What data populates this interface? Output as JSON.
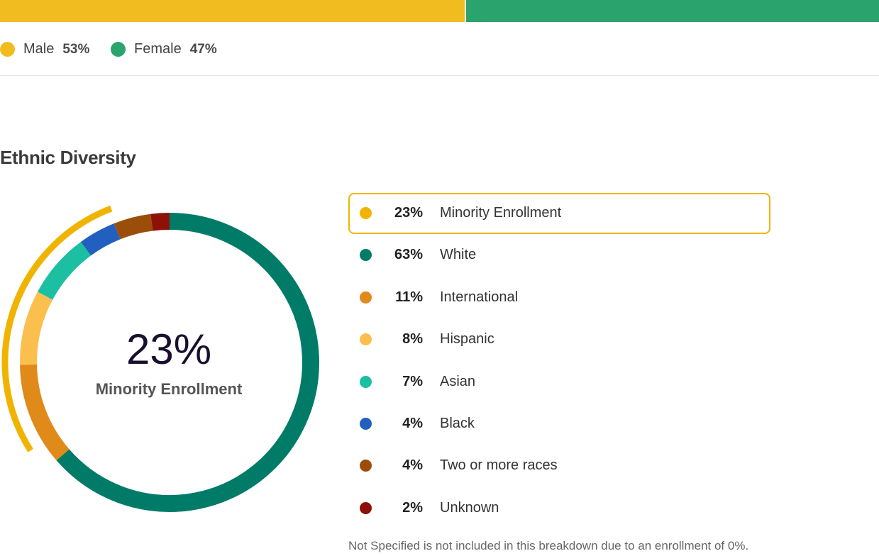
{
  "gender": {
    "items": [
      {
        "label": "Male",
        "value": "53%",
        "fraction": 0.53,
        "color": "#F0BC1F"
      },
      {
        "label": "Female",
        "value": "47%",
        "fraction": 0.47,
        "color": "#2BA36D"
      }
    ]
  },
  "ethnic": {
    "title": "Ethnic Diversity",
    "center_value": "23%",
    "center_label": "Minority Enrollment",
    "footnote": "Not Specified is not included in this breakdown due to an enrollment of 0%.",
    "highlight_color": "#F0B400"
  },
  "chart_data": {
    "type": "pie",
    "title": "Ethnic Diversity",
    "donut": true,
    "highlight": {
      "label": "Minority Enrollment",
      "value": 23,
      "pct": "23%",
      "color": "#F0B400"
    },
    "slices": [
      {
        "label": "White",
        "value": 63,
        "pct": "63%",
        "color": "#007B68"
      },
      {
        "label": "International",
        "value": 11,
        "pct": "11%",
        "color": "#E08A1A"
      },
      {
        "label": "Hispanic",
        "value": 8,
        "pct": "8%",
        "color": "#FBBF4E"
      },
      {
        "label": "Asian",
        "value": 7,
        "pct": "7%",
        "color": "#1CBFA2"
      },
      {
        "label": "Black",
        "value": 4,
        "pct": "4%",
        "color": "#2260C0"
      },
      {
        "label": "Two or more races",
        "value": 4,
        "pct": "4%",
        "color": "#9A4E0A"
      },
      {
        "label": "Unknown",
        "value": 2,
        "pct": "2%",
        "color": "#8E1108"
      }
    ]
  }
}
